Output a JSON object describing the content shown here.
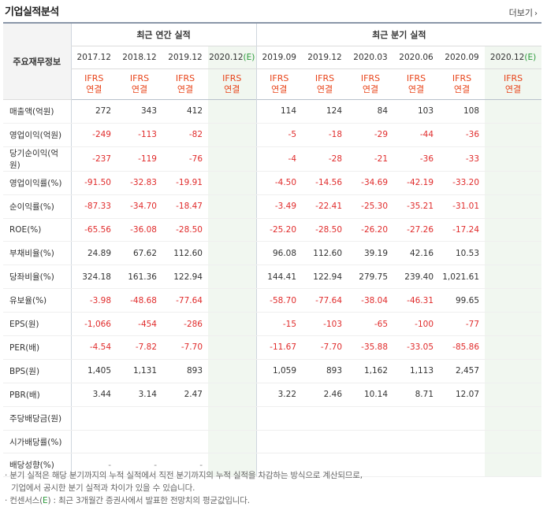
{
  "header": {
    "title": "기업실적분석",
    "more_label": "더보기"
  },
  "table": {
    "label_header": "주요재무정보",
    "annual_group": "최근 연간 실적",
    "quarterly_group": "최근 분기 실적",
    "annual_periods": [
      "2017.12",
      "2018.12",
      "2019.12",
      "2020.12(E)"
    ],
    "quarterly_periods": [
      "2019.09",
      "2019.12",
      "2020.03",
      "2020.06",
      "2020.09",
      "2020.12(E)"
    ],
    "accounting": [
      "IFRS\n연결",
      "IFRS\n연결",
      "IFRS\n연결",
      "IFRS\n연결",
      "IFRS\n연결",
      "IFRS\n연결",
      "IFRS\n연결",
      "IFRS\n연결",
      "IFRS\n연결",
      "IFRS\n연결"
    ],
    "rows": [
      {
        "label": "매출액(억원)",
        "values": [
          "272",
          "343",
          "412",
          "",
          "114",
          "124",
          "84",
          "103",
          "108",
          ""
        ]
      },
      {
        "label": "영업이익(억원)",
        "values": [
          "-249",
          "-113",
          "-82",
          "",
          "-5",
          "-18",
          "-29",
          "-44",
          "-36",
          ""
        ]
      },
      {
        "label": "당기순이익(억원)",
        "values": [
          "-237",
          "-119",
          "-76",
          "",
          "-4",
          "-28",
          "-21",
          "-36",
          "-33",
          ""
        ]
      },
      {
        "label": "영업이익률(%)",
        "values": [
          "-91.50",
          "-32.83",
          "-19.91",
          "",
          "-4.50",
          "-14.56",
          "-34.69",
          "-42.19",
          "-33.20",
          ""
        ]
      },
      {
        "label": "순이익률(%)",
        "values": [
          "-87.33",
          "-34.70",
          "-18.47",
          "",
          "-3.49",
          "-22.41",
          "-25.30",
          "-35.21",
          "-31.01",
          ""
        ]
      },
      {
        "label": "ROE(%)",
        "values": [
          "-65.56",
          "-36.08",
          "-28.50",
          "",
          "-25.20",
          "-28.50",
          "-26.20",
          "-27.26",
          "-17.24",
          ""
        ]
      },
      {
        "label": "부채비율(%)",
        "values": [
          "24.89",
          "67.62",
          "112.60",
          "",
          "96.08",
          "112.60",
          "39.19",
          "42.16",
          "10.53",
          ""
        ]
      },
      {
        "label": "당좌비율(%)",
        "values": [
          "324.18",
          "161.36",
          "122.94",
          "",
          "144.41",
          "122.94",
          "279.75",
          "239.40",
          "1,021.61",
          ""
        ]
      },
      {
        "label": "유보율(%)",
        "values": [
          "-3.98",
          "-48.68",
          "-77.64",
          "",
          "-58.70",
          "-77.64",
          "-38.04",
          "-46.31",
          "99.65",
          ""
        ]
      },
      {
        "label": "EPS(원)",
        "values": [
          "-1,066",
          "-454",
          "-286",
          "",
          "-15",
          "-103",
          "-65",
          "-100",
          "-77",
          ""
        ]
      },
      {
        "label": "PER(배)",
        "values": [
          "-4.54",
          "-7.82",
          "-7.70",
          "",
          "-11.67",
          "-7.70",
          "-35.88",
          "-33.05",
          "-85.86",
          ""
        ]
      },
      {
        "label": "BPS(원)",
        "values": [
          "1,405",
          "1,131",
          "893",
          "",
          "1,059",
          "893",
          "1,162",
          "1,113",
          "2,457",
          ""
        ]
      },
      {
        "label": "PBR(배)",
        "values": [
          "3.44",
          "3.14",
          "2.47",
          "",
          "3.22",
          "2.46",
          "10.14",
          "8.71",
          "12.07",
          ""
        ]
      },
      {
        "label": "주당배당금(원)",
        "values": [
          "",
          "",
          "",
          "",
          "",
          "",
          "",
          "",
          "",
          ""
        ]
      },
      {
        "label": "시가배당률(%)",
        "values": [
          "",
          "",
          "",
          "",
          "",
          "",
          "",
          "",
          "",
          ""
        ]
      },
      {
        "label": "배당성향(%)",
        "values": [
          "-",
          "-",
          "-",
          "",
          "",
          "",
          "",
          "",
          "",
          ""
        ]
      }
    ]
  },
  "notes": {
    "line1": "· 분기 실적은 해당 분기까지의 누적 실적에서 직전 분기까지의 누적 실적을 차감하는 방식으로 계산되므로,",
    "line2": "기업에서 공시한 분기 실적과 차이가 있을 수 있습니다.",
    "line3_prefix": "· 컨센서스(",
    "line3_e": "E",
    "line3_suffix": ") : 최근 3개월간 증권사에서 발표한 전망치의 평균값입니다."
  },
  "colors": {
    "negative": "#e02b2b",
    "accounting": "#e8441a",
    "estimate_bg": "#f1f7f0"
  }
}
